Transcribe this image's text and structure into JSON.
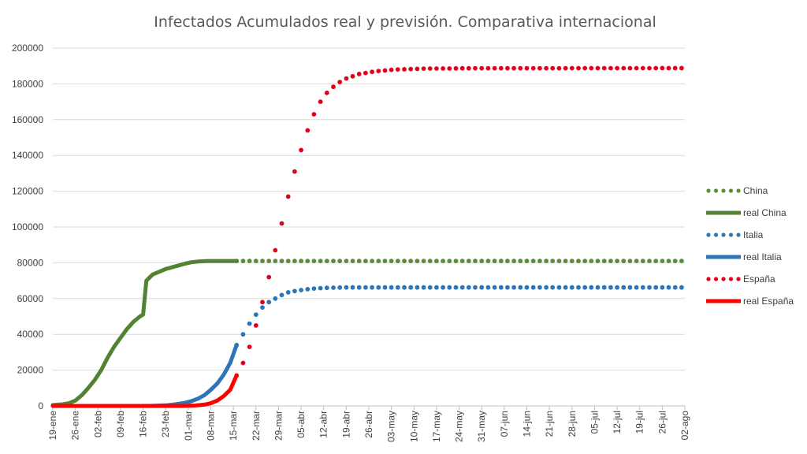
{
  "chart_data": {
    "type": "line",
    "title": "Infectados Acumulados real y previsión. Comparativa internacional",
    "xlabel": "",
    "ylabel": "",
    "ylim": [
      0,
      200000
    ],
    "yticks": [
      "0",
      "20000",
      "40000",
      "60000",
      "80000",
      "100000",
      "120000",
      "140000",
      "160000",
      "180000",
      "200000"
    ],
    "xticks": [
      "19-ene",
      "26-ene",
      "02-feb",
      "09-feb",
      "16-feb",
      "23-feb",
      "01-mar",
      "08-mar",
      "15-mar",
      "22-mar",
      "29-mar",
      "05-abr",
      "12-abr",
      "19-abr",
      "26-abr",
      "03-may",
      "10-may",
      "17-may",
      "24-may",
      "31-may",
      "07-jun",
      "14-jun",
      "21-jun",
      "28-jun",
      "05-jul",
      "12-jul",
      "19-jul",
      "26-jul",
      "02-ago"
    ],
    "grid": true,
    "legend_position": "right",
    "series": [
      {
        "name": "China",
        "style": "dotted",
        "color": "#5b8e3a",
        "points": [
          [
            57,
            81000
          ],
          [
            196,
            81000
          ]
        ]
      },
      {
        "name": "real China",
        "style": "solid",
        "color": "#548235",
        "points": [
          [
            0,
            500
          ],
          [
            3,
            900
          ],
          [
            5,
            1500
          ],
          [
            7,
            3000
          ],
          [
            9,
            6000
          ],
          [
            11,
            10000
          ],
          [
            13,
            14500
          ],
          [
            15,
            20000
          ],
          [
            17,
            27000
          ],
          [
            19,
            33000
          ],
          [
            21,
            38000
          ],
          [
            23,
            43000
          ],
          [
            25,
            47000
          ],
          [
            27,
            50000
          ],
          [
            28,
            51000
          ],
          [
            29,
            70000
          ],
          [
            31,
            73500
          ],
          [
            33,
            75000
          ],
          [
            35,
            76500
          ],
          [
            37,
            77500
          ],
          [
            39,
            78500
          ],
          [
            41,
            79500
          ],
          [
            43,
            80300
          ],
          [
            45,
            80700
          ],
          [
            48,
            81000
          ],
          [
            52,
            81000
          ],
          [
            57,
            81000
          ]
        ]
      },
      {
        "name": "Italia",
        "style": "dotted",
        "color": "#2e75b6",
        "points": [
          [
            57,
            34000
          ],
          [
            59,
            40000
          ],
          [
            61,
            46000
          ],
          [
            63,
            51000
          ],
          [
            65,
            55000
          ],
          [
            67,
            58000
          ],
          [
            69,
            60000
          ],
          [
            71,
            62000
          ],
          [
            73,
            63500
          ],
          [
            76,
            64500
          ],
          [
            80,
            65500
          ],
          [
            85,
            66000
          ],
          [
            90,
            66200
          ],
          [
            196,
            66200
          ]
        ]
      },
      {
        "name": "real Italia",
        "style": "solid",
        "color": "#2e75b6",
        "points": [
          [
            0,
            0
          ],
          [
            30,
            0
          ],
          [
            35,
            300
          ],
          [
            38,
            900
          ],
          [
            41,
            1700
          ],
          [
            43,
            2700
          ],
          [
            45,
            4000
          ],
          [
            47,
            6000
          ],
          [
            49,
            9000
          ],
          [
            51,
            12500
          ],
          [
            53,
            17500
          ],
          [
            55,
            24000
          ],
          [
            57,
            34000
          ]
        ]
      },
      {
        "name": "España",
        "style": "dotted",
        "color": "#e3001b",
        "points": [
          [
            57,
            17000
          ],
          [
            59,
            24000
          ],
          [
            61,
            33000
          ],
          [
            63,
            45000
          ],
          [
            65,
            58000
          ],
          [
            67,
            72000
          ],
          [
            69,
            87000
          ],
          [
            71,
            102000
          ],
          [
            73,
            117000
          ],
          [
            75,
            131000
          ],
          [
            77,
            143000
          ],
          [
            79,
            154000
          ],
          [
            81,
            163000
          ],
          [
            83,
            170000
          ],
          [
            85,
            175000
          ],
          [
            88,
            180000
          ],
          [
            91,
            183000
          ],
          [
            95,
            185500
          ],
          [
            100,
            187000
          ],
          [
            106,
            188000
          ],
          [
            115,
            188500
          ],
          [
            130,
            188700
          ],
          [
            196,
            188800
          ]
        ]
      },
      {
        "name": "real España",
        "style": "solid",
        "color": "#ff0000",
        "points": [
          [
            0,
            0
          ],
          [
            40,
            0
          ],
          [
            44,
            200
          ],
          [
            47,
            700
          ],
          [
            49,
            1500
          ],
          [
            51,
            3000
          ],
          [
            53,
            5500
          ],
          [
            55,
            9000
          ],
          [
            56,
            13000
          ],
          [
            57,
            17000
          ]
        ]
      }
    ]
  }
}
